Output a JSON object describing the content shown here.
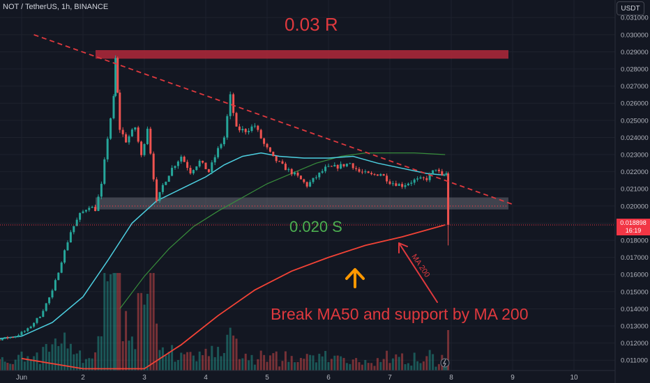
{
  "header": {
    "symbol": "NOT / TetherUS, 1h, BINANCE",
    "currency": "USDT"
  },
  "current_price": {
    "value": "0.018898",
    "countdown": "16:19"
  },
  "annotations": {
    "resistance": "0.03 R",
    "support": "0.020 S",
    "ma_label": "MA 200",
    "note": "Break MA50 and support by MA 200"
  },
  "colors": {
    "bull": "#26a69a",
    "bear": "#ef5350",
    "ma50": "#4dd0e1",
    "ma100": "#388e3c",
    "ma200": "#f44336",
    "resistance_zone": "#b2283a",
    "support_zone": "#787b86",
    "arrow_up": "#ff9800"
  },
  "chart_data": {
    "type": "candlestick",
    "x_axis": {
      "ticks": [
        "Jun",
        "2",
        "3",
        "4",
        "5",
        "6",
        "7",
        "8",
        "9",
        "10"
      ],
      "tick_day": [
        1,
        2,
        3,
        4,
        5,
        6,
        7,
        8,
        9,
        10
      ]
    },
    "y_axis": {
      "ticks": [
        0.011,
        0.012,
        0.013,
        0.014,
        0.015,
        0.016,
        0.017,
        0.018,
        0.019,
        0.02,
        0.021,
        0.022,
        0.023,
        0.024,
        0.025,
        0.026,
        0.027,
        0.028,
        0.029,
        0.03,
        0.031
      ],
      "range": [
        0.0105,
        0.0315
      ]
    },
    "trendline": [
      [
        1.2,
        0.03
      ],
      [
        9.0,
        0.0201
      ]
    ],
    "resistance_zone": [
      0.0286,
      0.0291
    ],
    "support_zone": [
      0.0198,
      0.0205
    ],
    "support_level": 0.02,
    "current_price": 0.018898,
    "anchors": [
      [
        0.0,
        0.0123
      ],
      [
        0.3,
        0.0121
      ],
      [
        0.6,
        0.0122
      ],
      [
        0.9,
        0.0124
      ],
      [
        1.1,
        0.0128
      ],
      [
        1.3,
        0.0136
      ],
      [
        1.5,
        0.015
      ],
      [
        1.65,
        0.0168
      ],
      [
        1.8,
        0.0185
      ],
      [
        1.95,
        0.0195
      ],
      [
        2.1,
        0.02
      ],
      [
        2.2,
        0.0198
      ],
      [
        2.3,
        0.0212
      ],
      [
        2.4,
        0.024
      ],
      [
        2.5,
        0.0263
      ],
      [
        2.53,
        0.0286
      ],
      [
        2.6,
        0.0245
      ],
      [
        2.7,
        0.0238
      ],
      [
        2.85,
        0.0246
      ],
      [
        2.95,
        0.0229
      ],
      [
        3.05,
        0.0246
      ],
      [
        3.2,
        0.0202
      ],
      [
        3.3,
        0.0212
      ],
      [
        3.45,
        0.0222
      ],
      [
        3.6,
        0.0229
      ],
      [
        3.75,
        0.022
      ],
      [
        3.9,
        0.0226
      ],
      [
        4.05,
        0.022
      ],
      [
        4.2,
        0.0233
      ],
      [
        4.3,
        0.024
      ],
      [
        4.4,
        0.0264
      ],
      [
        4.5,
        0.0245
      ],
      [
        4.65,
        0.0244
      ],
      [
        4.8,
        0.0247
      ],
      [
        4.95,
        0.0236
      ],
      [
        5.1,
        0.0228
      ],
      [
        5.3,
        0.0222
      ],
      [
        5.5,
        0.0217
      ],
      [
        5.65,
        0.0212
      ],
      [
        5.8,
        0.0217
      ],
      [
        5.95,
        0.0222
      ],
      [
        6.15,
        0.0223
      ],
      [
        6.35,
        0.0225
      ],
      [
        6.5,
        0.022
      ],
      [
        6.7,
        0.0218
      ],
      [
        6.85,
        0.0219
      ],
      [
        7.0,
        0.0214
      ],
      [
        7.2,
        0.0212
      ],
      [
        7.4,
        0.0215
      ],
      [
        7.6,
        0.0216
      ],
      [
        7.75,
        0.0222
      ],
      [
        7.85,
        0.0217
      ],
      [
        7.92,
        0.0219
      ]
    ],
    "drop_candle": {
      "day": 7.95,
      "open": 0.0219,
      "high": 0.022,
      "low": 0.0177,
      "close": 0.0189
    },
    "ma50": [
      [
        0.0,
        0.0121
      ],
      [
        0.5,
        0.0122
      ],
      [
        1.0,
        0.0124
      ],
      [
        1.5,
        0.0132
      ],
      [
        2.0,
        0.0147
      ],
      [
        2.4,
        0.0168
      ],
      [
        2.8,
        0.019
      ],
      [
        3.2,
        0.0203
      ],
      [
        3.6,
        0.021
      ],
      [
        4.0,
        0.0217
      ],
      [
        4.3,
        0.0224
      ],
      [
        4.6,
        0.0229
      ],
      [
        4.9,
        0.0231
      ],
      [
        5.2,
        0.0229
      ],
      [
        5.6,
        0.0228
      ],
      [
        6.0,
        0.0228
      ],
      [
        6.4,
        0.0229
      ],
      [
        6.8,
        0.0225
      ],
      [
        7.2,
        0.0222
      ],
      [
        7.6,
        0.0219
      ],
      [
        7.9,
        0.0218
      ]
    ],
    "ma100": [
      [
        2.6,
        0.014
      ],
      [
        3.0,
        0.0159
      ],
      [
        3.4,
        0.0175
      ],
      [
        3.8,
        0.0188
      ],
      [
        4.2,
        0.0197
      ],
      [
        4.6,
        0.0205
      ],
      [
        5.0,
        0.0213
      ],
      [
        5.4,
        0.0219
      ],
      [
        5.8,
        0.0225
      ],
      [
        6.2,
        0.0229
      ],
      [
        6.6,
        0.0231
      ],
      [
        7.0,
        0.0231
      ],
      [
        7.4,
        0.0231
      ],
      [
        7.9,
        0.023
      ]
    ],
    "ma200": [
      [
        1.0,
        0.0111
      ],
      [
        2.0,
        0.0105
      ],
      [
        3.0,
        0.0105
      ],
      [
        3.6,
        0.0119
      ],
      [
        4.2,
        0.0136
      ],
      [
        4.8,
        0.0151
      ],
      [
        5.4,
        0.0162
      ],
      [
        6.0,
        0.017
      ],
      [
        6.6,
        0.0177
      ],
      [
        7.2,
        0.0182
      ],
      [
        7.9,
        0.0189
      ]
    ]
  }
}
